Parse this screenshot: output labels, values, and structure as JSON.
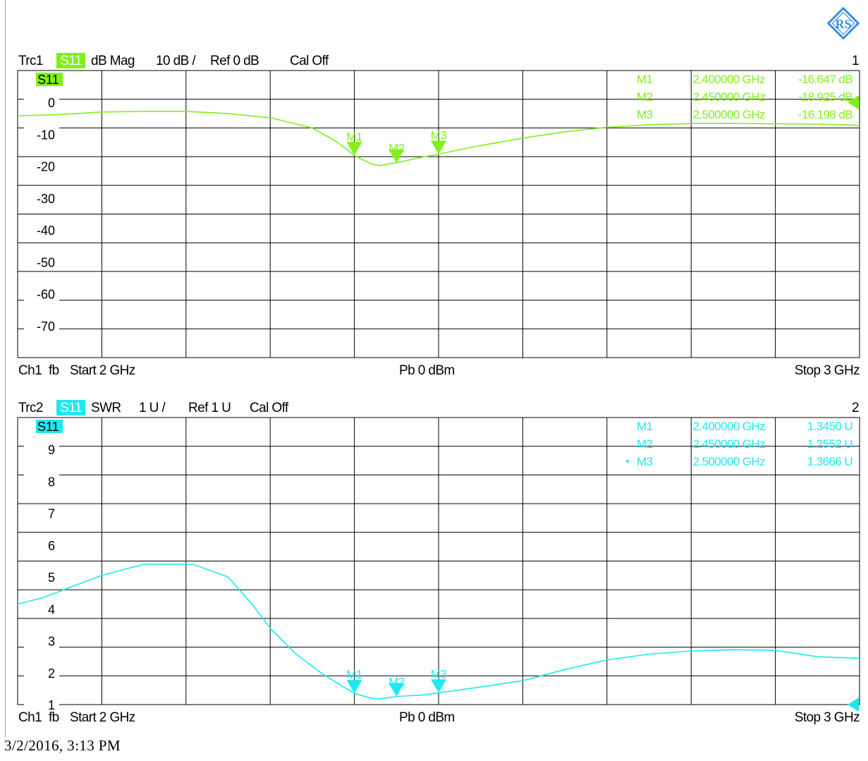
{
  "timestamp": "3/2/2016, 3:13 PM",
  "logo_text": "RS",
  "colors": {
    "trace1": "#7ff01a",
    "trace2": "#1ee8ee",
    "grid": "#000000",
    "background": "#ffffff"
  },
  "charts": [
    {
      "trace": "Trc1",
      "param": "S11",
      "format": "dB Mag",
      "scale": "10 dB /",
      "ref": "Ref 0 dB",
      "cal": "Cal Off",
      "number": "1",
      "channel": "Ch1",
      "fb": "fb",
      "start": "Start  2 GHz",
      "power": "Pb   0 dBm",
      "stop": "Stop  3 GHz",
      "top_tick": "10",
      "markers": [
        {
          "id": "M1",
          "freq": "2.400000 GHz",
          "value": "-16.647 dB"
        },
        {
          "id": "M2",
          "freq": "2.450000 GHz",
          "value": "-18.925 dB"
        },
        {
          "id": "M3",
          "freq": "2.500000 GHz",
          "value": "-16.198 dB"
        }
      ]
    },
    {
      "trace": "Trc2",
      "param": "S11",
      "format": "SWR",
      "scale": "1 U /",
      "ref": "Ref 1 U",
      "cal": "Cal Off",
      "number": "2",
      "channel": "Ch1",
      "fb": "fb",
      "start": "Start  2 GHz",
      "power": "Pb   0 dBm",
      "stop": "Stop  3 GHz",
      "top_tick": "10",
      "markers": [
        {
          "id": "M1",
          "freq": "2.400000 GHz",
          "value": "1.3450  U"
        },
        {
          "id": "M2",
          "freq": "2.450000 GHz",
          "value": "1.2552  U"
        },
        {
          "id": "M3",
          "freq": "2.500000 GHz",
          "value": "1.3666  U"
        }
      ]
    }
  ],
  "chart_data": [
    {
      "type": "line",
      "xlim": [
        2.0,
        3.0
      ],
      "ylim": [
        -80,
        10
      ],
      "yticks": [
        "0",
        "-10",
        "-20",
        "-30",
        "-40",
        "-50",
        "-60",
        "-70"
      ],
      "yticks_values": [
        0,
        -10,
        -20,
        -30,
        -40,
        -50,
        -60,
        -70
      ],
      "reference_marker": 0,
      "series": [
        {
          "x": [
            2.0,
            2.05,
            2.1,
            2.15,
            2.2,
            2.25,
            2.3,
            2.35,
            2.38,
            2.4,
            2.42,
            2.43,
            2.45,
            2.48,
            2.5,
            2.55,
            2.6,
            2.65,
            2.7,
            2.75,
            2.8,
            2.85,
            2.9,
            2.95,
            3.0
          ],
          "y": [
            -4.2,
            -3.8,
            -3,
            -2.8,
            -2.8,
            -3.5,
            -4.8,
            -8,
            -12.5,
            -16.6,
            -19.3,
            -19.8,
            -18.9,
            -17.2,
            -16.2,
            -13.5,
            -11.2,
            -9.2,
            -7.8,
            -7,
            -6.6,
            -6.6,
            -6.7,
            -6.8,
            -7.2
          ]
        }
      ]
    },
    {
      "type": "line",
      "xlim": [
        2.0,
        3.0
      ],
      "ylim": [
        1,
        10
      ],
      "yticks": [
        "9",
        "8",
        "7",
        "6",
        "5",
        "4",
        "3",
        "2",
        "1"
      ],
      "yticks_values": [
        9,
        8,
        7,
        6,
        5,
        4,
        3,
        2,
        1
      ],
      "reference_marker": 1,
      "series": [
        {
          "x": [
            2.0,
            2.03,
            2.06,
            2.1,
            2.15,
            2.2,
            2.2083,
            2.25,
            2.28,
            2.3,
            2.33,
            2.36,
            2.4,
            2.42,
            2.43,
            2.45,
            2.48,
            2.5,
            2.55,
            2.6,
            2.65,
            2.7,
            2.75,
            2.8,
            2.85,
            2.9,
            2.95,
            3.0
          ],
          "y": [
            4.15,
            4.35,
            4.65,
            5.05,
            5.4,
            5.4,
            5.4,
            5.0,
            4.1,
            3.4,
            2.6,
            2.0,
            1.35,
            1.2,
            1.18,
            1.255,
            1.3,
            1.37,
            1.55,
            1.75,
            2.1,
            2.4,
            2.58,
            2.68,
            2.72,
            2.7,
            2.5,
            2.45
          ]
        }
      ]
    }
  ]
}
